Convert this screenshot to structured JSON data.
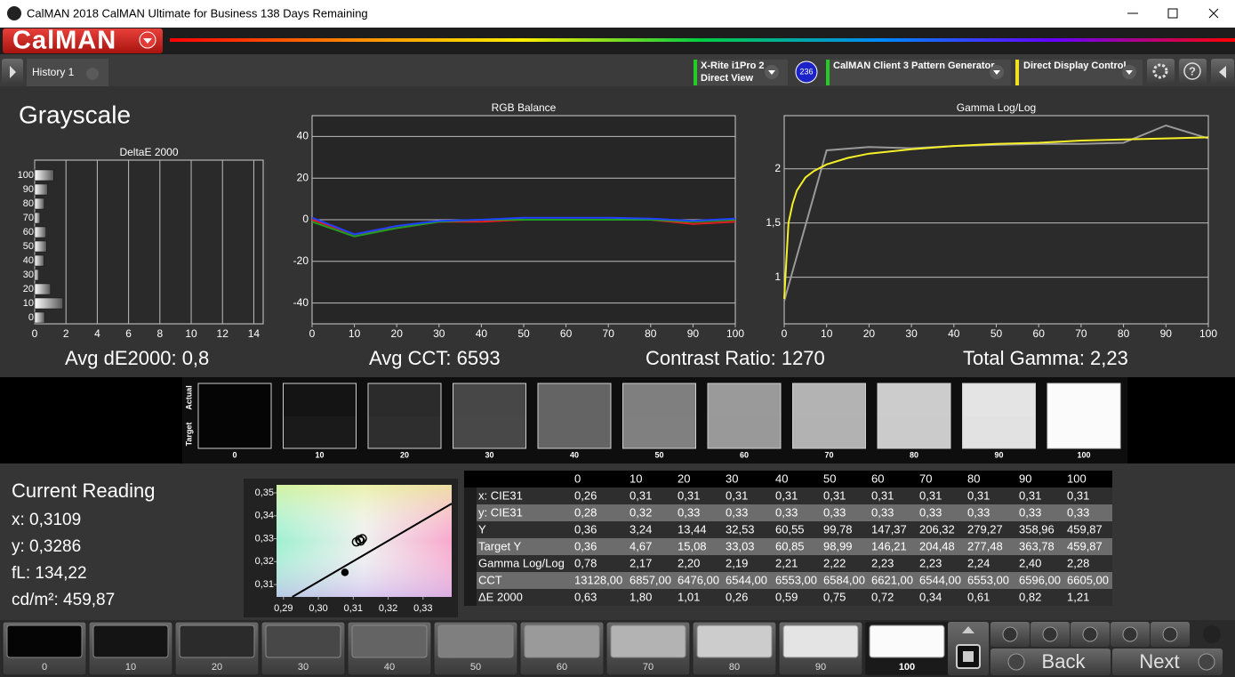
{
  "window": {
    "title": "CalMAN 2018 CalMAN Ultimate for Business 138 Days Remaining"
  },
  "brand": "CalMAN",
  "tab": "History 1",
  "meter": {
    "name": "X-Rite i1Pro 2",
    "mode": "Direct View",
    "badge": "236"
  },
  "pattern_generator": "CalMAN Client 3 Pattern Generator",
  "display_control": "Direct Display Control",
  "help": "?",
  "heading": "Grayscale",
  "charts": {
    "delta_e": {
      "type": "hbar",
      "title": "DeltaE 2000",
      "categories": [
        "0",
        "10",
        "20",
        "30",
        "40",
        "50",
        "60",
        "70",
        "80",
        "90",
        "100"
      ],
      "values": [
        0.63,
        1.8,
        1.01,
        0.26,
        0.59,
        0.75,
        0.72,
        0.34,
        0.61,
        0.82,
        1.21
      ],
      "xlim": [
        0,
        14.6
      ],
      "xticks": [
        0,
        2,
        4,
        6,
        8,
        10,
        12,
        14
      ],
      "grid": "x"
    },
    "rgb_balance": {
      "type": "line",
      "title": "RGB Balance",
      "x": [
        0,
        10,
        20,
        30,
        40,
        50,
        60,
        70,
        80,
        90,
        100
      ],
      "series": [
        {
          "color": "#e02020",
          "values": [
            0,
            -7,
            -4,
            -1,
            -1,
            0,
            0,
            0,
            0,
            -2,
            -1
          ]
        },
        {
          "color": "#20a020",
          "values": [
            -1,
            -8,
            -4,
            -1,
            0,
            0,
            0,
            0,
            0,
            -1,
            0
          ]
        },
        {
          "color": "#2040ff",
          "values": [
            1,
            -7,
            -3,
            -0.5,
            0,
            1,
            1,
            1,
            0.5,
            -0.5,
            0.5
          ]
        }
      ],
      "xlim": [
        0,
        100
      ],
      "xticks": [
        0,
        10,
        20,
        30,
        40,
        50,
        60,
        70,
        80,
        90,
        100
      ],
      "ylim": [
        -50,
        50
      ],
      "yticks": [
        -40,
        -20,
        0,
        20,
        40
      ],
      "grid": "y"
    },
    "gamma": {
      "type": "line",
      "title": "Gamma Log/Log",
      "series": [
        {
          "color": "#9a9a9a",
          "x": [
            0,
            10,
            20,
            30,
            40,
            50,
            60,
            70,
            80,
            90,
            100
          ],
          "values": [
            0.78,
            2.17,
            2.2,
            2.19,
            2.21,
            2.22,
            2.23,
            2.23,
            2.24,
            2.4,
            2.28
          ]
        },
        {
          "color": "#f5f028",
          "x": [
            0,
            1,
            2,
            3,
            5,
            7,
            10,
            15,
            20,
            30,
            40,
            50,
            60,
            70,
            80,
            90,
            100
          ],
          "values": [
            0.8,
            1.5,
            1.68,
            1.8,
            1.92,
            1.98,
            2.04,
            2.1,
            2.14,
            2.18,
            2.21,
            2.23,
            2.24,
            2.26,
            2.27,
            2.28,
            2.29
          ]
        }
      ],
      "xlim": [
        0,
        100
      ],
      "xticks": [
        0,
        10,
        20,
        30,
        40,
        50,
        60,
        70,
        80,
        90,
        100
      ],
      "ylim": [
        0.57,
        2.49
      ],
      "yticks": [
        1,
        {
          "value": 1.5,
          "label": "1,5"
        },
        2
      ],
      "grid": "y"
    },
    "cie": {
      "type": "scatter",
      "points": {
        "x": [
          0.3076,
          0.3109,
          0.3118,
          0.3126,
          0.3121
        ],
        "y": [
          0.3153,
          0.3286,
          0.3296,
          0.33,
          0.329
        ]
      },
      "locus": {
        "x": [
          0.2925,
          0.3382
        ],
        "y": [
          0.3046,
          0.3453
        ]
      },
      "xlim": [
        0.288,
        0.3382
      ],
      "ylim": [
        0.3046,
        0.3535
      ],
      "xticks": [
        {
          "value": 0.29,
          "label": "0,29"
        },
        {
          "value": 0.3,
          "label": "0,30"
        },
        {
          "value": 0.31,
          "label": "0,31"
        },
        {
          "value": 0.32,
          "label": "0,32"
        },
        {
          "value": 0.33,
          "label": "0,33"
        }
      ],
      "yticks": [
        {
          "value": 0.31,
          "label": "0,31"
        },
        {
          "value": 0.32,
          "label": "0,32"
        },
        {
          "value": 0.33,
          "label": "0,33"
        },
        {
          "value": 0.34,
          "label": "0,34"
        },
        {
          "value": 0.35,
          "label": "0,35"
        }
      ]
    }
  },
  "summary": [
    "Avg dE2000: 0,8",
    "Avg CCT: 6593",
    "Contrast Ratio: 1270",
    "Total Gamma: 2,23"
  ],
  "swatches": {
    "actual_label": "Actual",
    "target_label": "Target",
    "labels": [
      "0",
      "10",
      "20",
      "30",
      "40",
      "50",
      "60",
      "70",
      "80",
      "90",
      "100"
    ],
    "actual_colors": [
      "#050505",
      "#141414",
      "#2b2b2b",
      "#474747",
      "#646464",
      "#7f7f7f",
      "#9a9a9a",
      "#b3b3b3",
      "#cccccc",
      "#e4e4e4",
      "#fbfbfb"
    ],
    "target_colors": [
      "#050505",
      "#1a1a1a",
      "#2e2e2e",
      "#484848",
      "#646464",
      "#808080",
      "#999999",
      "#b2b2b2",
      "#cbcbcb",
      "#e2e2e2",
      "#fbfbfb"
    ]
  },
  "reading": {
    "title": "Current Reading",
    "lines": [
      "x: 0,3109",
      "y: 0,3286",
      "fL: 134,22",
      "cd/m²: 459,87"
    ]
  },
  "table": {
    "header": [
      "0",
      "10",
      "20",
      "30",
      "40",
      "50",
      "60",
      "70",
      "80",
      "90",
      "100"
    ],
    "rows": [
      [
        "x: CIE31",
        "0,26",
        "0,31",
        "0,31",
        "0,31",
        "0,31",
        "0,31",
        "0,31",
        "0,31",
        "0,31",
        "0,31",
        "0,31"
      ],
      [
        "y: CIE31",
        "0,28",
        "0,32",
        "0,33",
        "0,33",
        "0,33",
        "0,33",
        "0,33",
        "0,33",
        "0,33",
        "0,33",
        "0,33"
      ],
      [
        "Y",
        "0,36",
        "3,24",
        "13,44",
        "32,53",
        "60,55",
        "99,78",
        "147,37",
        "206,32",
        "279,27",
        "358,96",
        "459,87"
      ],
      [
        "Target Y",
        "0,36",
        "4,67",
        "15,08",
        "33,03",
        "60,85",
        "98,99",
        "146,21",
        "204,48",
        "277,48",
        "363,78",
        "459,87"
      ],
      [
        "Gamma Log/Log",
        "0,78",
        "2,17",
        "2,20",
        "2,19",
        "2,21",
        "2,22",
        "2,23",
        "2,23",
        "2,24",
        "2,40",
        "2,28"
      ],
      [
        "CCT",
        "13128,00",
        "6857,00",
        "6476,00",
        "6544,00",
        "6553,00",
        "6584,00",
        "6621,00",
        "6544,00",
        "6553,00",
        "6596,00",
        "6605,00"
      ],
      [
        "ΔE 2000",
        "0,63",
        "1,80",
        "1,01",
        "0,26",
        "0,59",
        "0,75",
        "0,72",
        "0,34",
        "0,61",
        "0,82",
        "1,21"
      ]
    ]
  },
  "footer": {
    "selected": 10,
    "back": "Back",
    "next": "Next"
  }
}
